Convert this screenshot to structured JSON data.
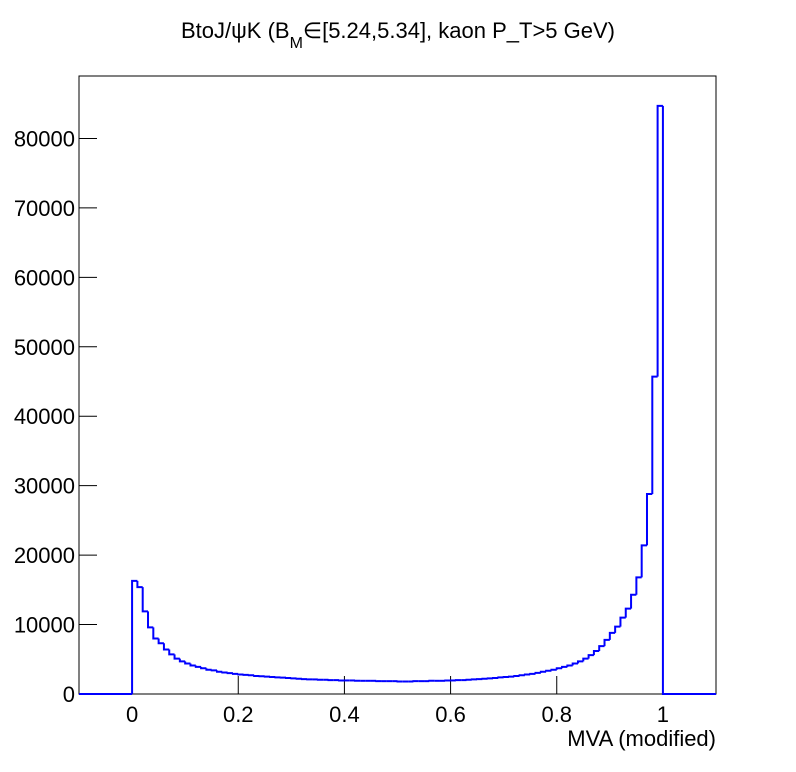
{
  "chart_data": {
    "type": "histogram",
    "title": {
      "main": "BtoJ/ψK (B",
      "sub": "M",
      "rest": "∈[5.24,5.34], kaon P_T>5 GeV)"
    },
    "x_label": "MVA (modified)",
    "color": "#0000ff",
    "bins": [
      -0.1,
      0,
      0.01,
      0.02,
      0.03,
      0.04,
      0.05,
      0.06,
      0.07,
      0.08,
      0.09,
      0.1,
      0.11,
      0.12,
      0.13,
      0.14,
      0.15,
      0.16,
      0.17,
      0.18,
      0.19,
      0.2,
      0.21,
      0.22,
      0.23,
      0.24,
      0.25,
      0.26,
      0.27,
      0.28,
      0.29,
      0.3,
      0.31,
      0.32,
      0.33,
      0.34,
      0.35,
      0.36,
      0.37,
      0.38,
      0.39,
      0.4,
      0.41,
      0.42,
      0.43,
      0.44,
      0.45,
      0.46,
      0.47,
      0.48,
      0.49,
      0.5,
      0.51,
      0.52,
      0.53,
      0.54,
      0.55,
      0.56,
      0.57,
      0.58,
      0.59,
      0.6,
      0.61,
      0.62,
      0.63,
      0.64,
      0.65,
      0.66,
      0.67,
      0.68,
      0.69,
      0.7,
      0.71,
      0.72,
      0.73,
      0.74,
      0.75,
      0.76,
      0.77,
      0.78,
      0.79,
      0.8,
      0.81,
      0.82,
      0.83,
      0.84,
      0.85,
      0.86,
      0.87,
      0.88,
      0.89,
      0.9,
      0.91,
      0.92,
      0.93,
      0.94,
      0.95,
      0.96,
      0.97,
      0.98,
      0.99,
      1,
      1.1
    ],
    "counts": [
      0,
      16300,
      15400,
      11900,
      9600,
      8000,
      7300,
      6400,
      5700,
      5100,
      4700,
      4400,
      4100,
      3900,
      3700,
      3500,
      3400,
      3200,
      3100,
      3000,
      2900,
      2800,
      2750,
      2700,
      2600,
      2550,
      2500,
      2450,
      2400,
      2350,
      2300,
      2250,
      2200,
      2150,
      2100,
      2100,
      2050,
      2050,
      2000,
      2000,
      1950,
      1950,
      1950,
      1900,
      1900,
      1900,
      1900,
      1850,
      1850,
      1850,
      1850,
      1800,
      1800,
      1800,
      1850,
      1850,
      1850,
      1900,
      1900,
      1900,
      1950,
      1950,
      2000,
      2000,
      2050,
      2100,
      2150,
      2200,
      2250,
      2300,
      2400,
      2450,
      2500,
      2600,
      2700,
      2800,
      2900,
      3050,
      3200,
      3350,
      3500,
      3700,
      3900,
      4100,
      4400,
      4700,
      5100,
      5600,
      6200,
      6900,
      7800,
      8800,
      9700,
      11000,
      12300,
      14300,
      16800,
      21400,
      28800,
      45700,
      84700,
      0
    ],
    "xlim": [
      -0.1,
      1.1
    ],
    "ylim": [
      0,
      89000
    ],
    "xticks": [
      0,
      0.2,
      0.4,
      0.6,
      0.8,
      1
    ],
    "yticks": [
      0,
      10000,
      20000,
      30000,
      40000,
      50000,
      60000,
      70000,
      80000
    ]
  }
}
